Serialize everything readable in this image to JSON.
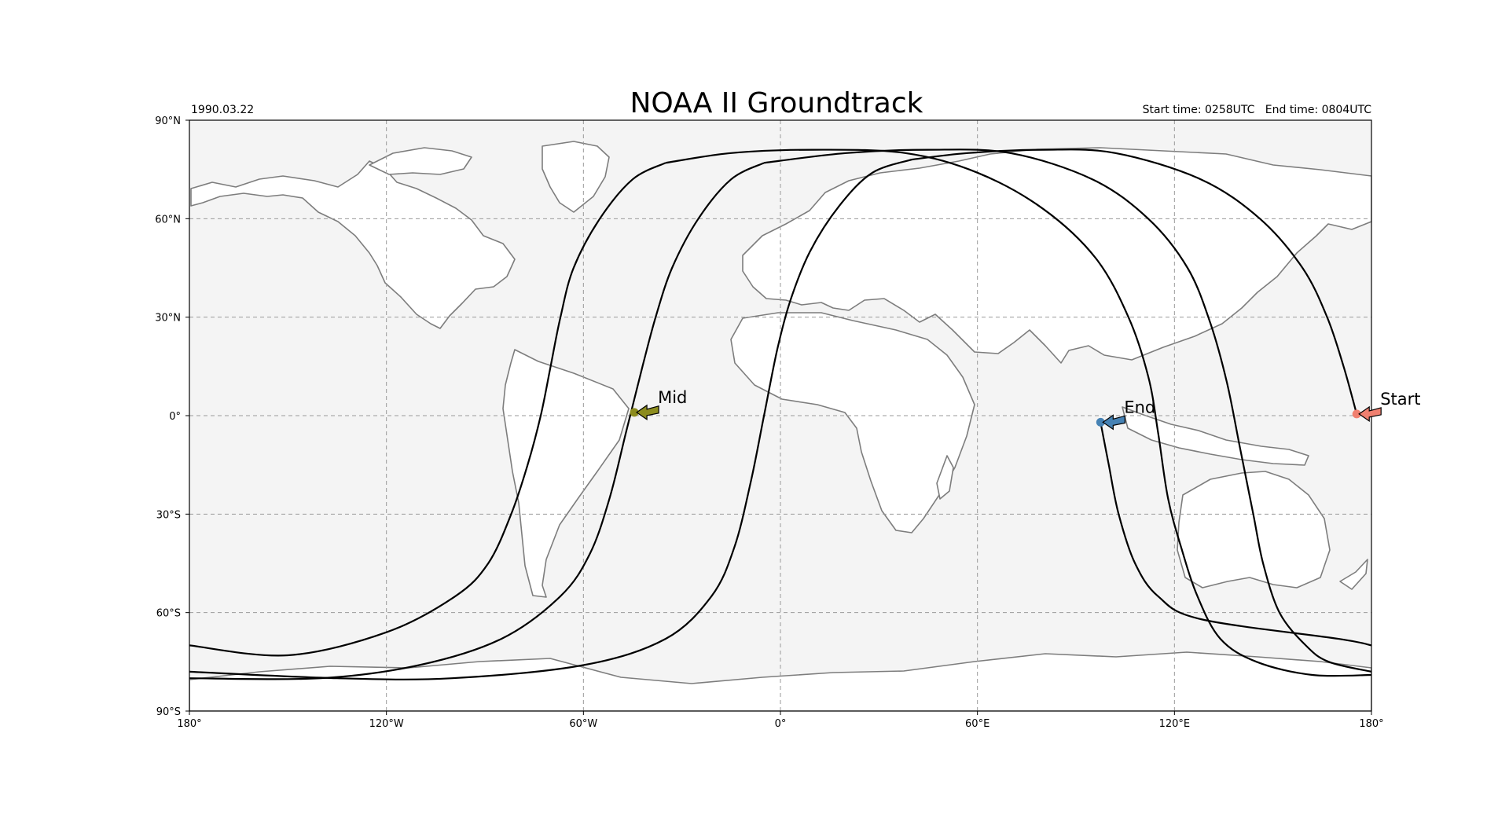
{
  "title": "NOAA II Groundtrack",
  "date": "1990.03.22",
  "time_info": "Start time: 0258UTC   End time: 0804UTC",
  "colors": {
    "ocean": "#f4f4f4",
    "land": "#ffffff",
    "coastline": "#7d7d7d",
    "track": "#000000",
    "start_marker": "#f08070",
    "mid_marker": "#8c8c1e",
    "end_marker": "#4682b4"
  },
  "axes": {
    "lon_ticks": [
      "180°",
      "120°W",
      "60°W",
      "0°",
      "60°E",
      "120°E",
      "180°"
    ],
    "lat_ticks": [
      "90°N",
      "60°N",
      "30°N",
      "0°",
      "30°S",
      "60°S",
      "90°S"
    ]
  },
  "markers": [
    {
      "label": "Start",
      "lon": 175.5,
      "lat": 0.5,
      "color": "#f08070"
    },
    {
      "label": "Mid",
      "lon": -44.5,
      "lat": 1,
      "color": "#8c8c1e"
    },
    {
      "label": "End",
      "lon": 97.5,
      "lat": -2,
      "color": "#4682b4"
    }
  ],
  "chart_data": {
    "type": "line",
    "title": "NOAA II Groundtrack",
    "xlim": [
      -180,
      180
    ],
    "ylim": [
      -90,
      90
    ],
    "grid": true,
    "series": [
      {
        "points": [
          [
            175.5,
            0.5
          ],
          [
            171.5,
            15
          ],
          [
            166.5,
            30
          ],
          [
            159,
            45
          ],
          [
            146,
            60
          ],
          [
            128,
            72
          ],
          [
            102,
            80
          ],
          [
            80,
            81
          ],
          [
            57,
            80
          ],
          [
            40,
            78
          ]
        ]
      },
      {
        "points": [
          [
            40,
            78
          ],
          [
            28,
            74
          ],
          [
            18,
            64
          ],
          [
            9,
            50
          ],
          [
            3,
            35
          ],
          [
            -1,
            20
          ],
          [
            -5,
            0
          ],
          [
            -9,
            -20
          ],
          [
            -14,
            -40
          ],
          [
            -21,
            -55
          ],
          [
            -35,
            -68
          ],
          [
            -60,
            -76
          ],
          [
            -100,
            -80
          ],
          [
            -135,
            -80
          ],
          [
            -180,
            -78
          ]
        ]
      },
      {
        "points": [
          [
            180,
            -78
          ],
          [
            167,
            -75
          ],
          [
            160,
            -70
          ],
          [
            152,
            -60
          ],
          [
            147,
            -45
          ],
          [
            144,
            -30
          ],
          [
            140,
            -10
          ],
          [
            136,
            10
          ],
          [
            131,
            28
          ],
          [
            124,
            45
          ],
          [
            112,
            60
          ],
          [
            95,
            72
          ],
          [
            70,
            80
          ],
          [
            45,
            81
          ],
          [
            20,
            80
          ],
          [
            -5,
            77
          ]
        ]
      },
      {
        "points": [
          [
            -5,
            77
          ],
          [
            -15,
            72
          ],
          [
            -25,
            60
          ],
          [
            -33,
            45
          ],
          [
            -38,
            30
          ],
          [
            -42,
            15
          ],
          [
            -47,
            -5
          ],
          [
            -52,
            -25
          ],
          [
            -58,
            -42
          ],
          [
            -67,
            -55
          ],
          [
            -85,
            -68
          ],
          [
            -110,
            -76
          ],
          [
            -140,
            -80
          ],
          [
            -180,
            -80
          ]
        ]
      },
      {
        "points": [
          [
            180,
            -79
          ],
          [
            162,
            -79
          ],
          [
            145,
            -75
          ],
          [
            134,
            -68
          ],
          [
            127,
            -55
          ],
          [
            122,
            -40
          ],
          [
            118,
            -25
          ],
          [
            115,
            -5
          ],
          [
            112,
            12
          ],
          [
            106,
            30
          ],
          [
            96,
            48
          ],
          [
            80,
            63
          ],
          [
            60,
            74
          ],
          [
            38,
            80
          ],
          [
            10,
            81
          ],
          [
            -15,
            80
          ],
          [
            -35,
            77
          ]
        ]
      },
      {
        "points": [
          [
            -35,
            77
          ],
          [
            -45,
            72
          ],
          [
            -55,
            60
          ],
          [
            -63,
            45
          ],
          [
            -67,
            30
          ],
          [
            -70,
            15
          ],
          [
            -73,
            0
          ],
          [
            -77,
            -15
          ],
          [
            -82,
            -30
          ],
          [
            -89,
            -45
          ],
          [
            -99,
            -55
          ],
          [
            -120,
            -66
          ],
          [
            -150,
            -73
          ],
          [
            -180,
            -70
          ]
        ]
      },
      {
        "points": [
          [
            180,
            -70
          ],
          [
            170,
            -68
          ],
          [
            128,
            -62
          ],
          [
            115,
            -55
          ],
          [
            108,
            -45
          ],
          [
            103,
            -30
          ],
          [
            100,
            -15
          ],
          [
            97.5,
            -2
          ]
        ]
      }
    ]
  }
}
